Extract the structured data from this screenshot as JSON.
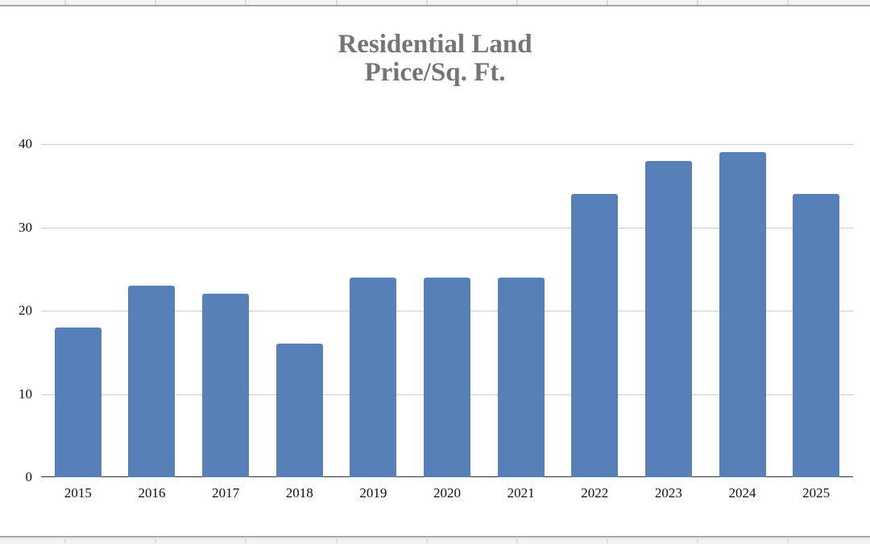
{
  "chart_data": {
    "type": "bar",
    "title": "Residential Land Price/Sq. Ft.",
    "title_lines": [
      "Residential Land",
      "Price/Sq. Ft."
    ],
    "xlabel": "",
    "ylabel": "",
    "categories": [
      "2015",
      "2016",
      "2017",
      "2018",
      "2019",
      "2020",
      "2021",
      "2022",
      "2023",
      "2024",
      "2025"
    ],
    "values": [
      18,
      23,
      22,
      16,
      24,
      24,
      24,
      34,
      38,
      39,
      34
    ],
    "ylim": [
      0,
      40
    ],
    "yticks": [
      0,
      10,
      20,
      30,
      40
    ],
    "grid": true,
    "legend": null,
    "bar_color": "#5880b8"
  }
}
